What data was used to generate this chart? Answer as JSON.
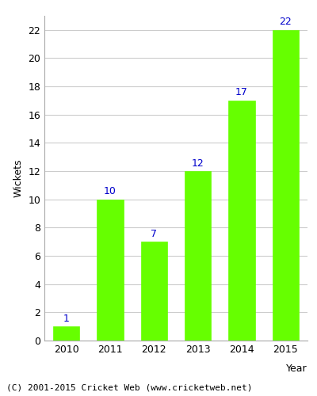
{
  "years": [
    "2010",
    "2011",
    "2012",
    "2013",
    "2014",
    "2015"
  ],
  "values": [
    1,
    10,
    7,
    12,
    17,
    22
  ],
  "bar_color": "#66ff00",
  "bar_edgecolor": "#66ff00",
  "label_color": "#0000cc",
  "xlabel": "Year",
  "ylabel": "Wickets",
  "ylim": [
    0,
    23
  ],
  "yticks": [
    0,
    2,
    4,
    6,
    8,
    10,
    12,
    14,
    16,
    18,
    20,
    22
  ],
  "grid_color": "#cccccc",
  "background_color": "#ffffff",
  "axes_background": "#ffffff",
  "footer_text": "(C) 2001-2015 Cricket Web (www.cricketweb.net)",
  "footer_color": "#000000",
  "label_fontsize": 9,
  "axis_label_fontsize": 9,
  "tick_fontsize": 9,
  "footer_fontsize": 8
}
